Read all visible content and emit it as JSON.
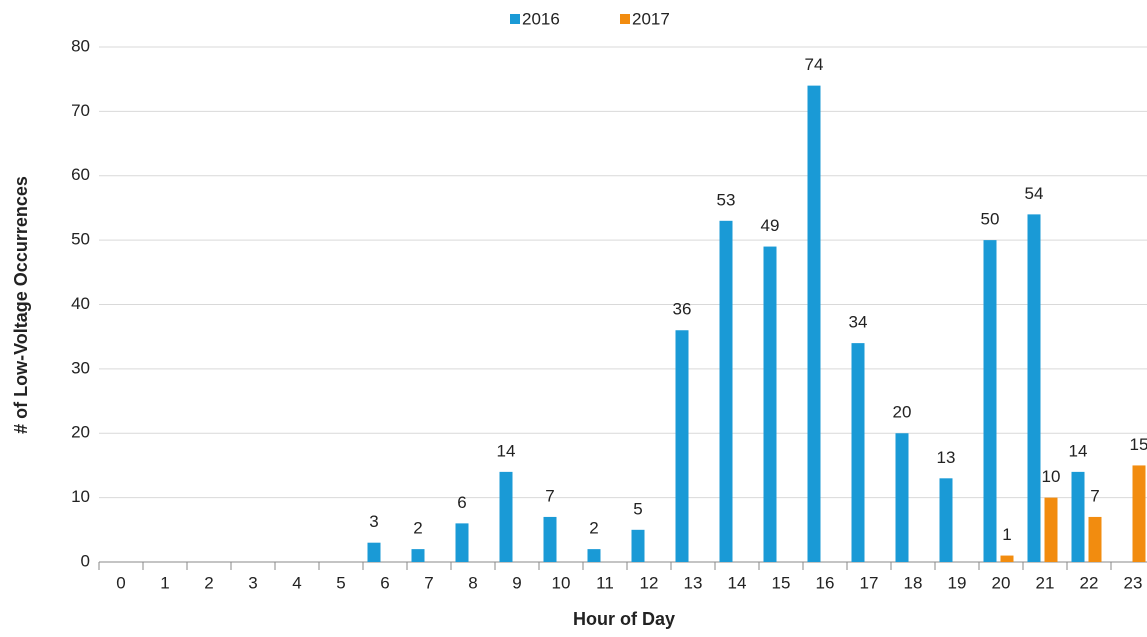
{
  "chart_data": {
    "type": "bar",
    "x_label": "Hour of Day",
    "y_label": "# of Low-Voltage Occurrences",
    "categories": [
      "0",
      "1",
      "2",
      "3",
      "4",
      "5",
      "6",
      "7",
      "8",
      "9",
      "10",
      "11",
      "12",
      "13",
      "14",
      "15",
      "16",
      "17",
      "18",
      "19",
      "20",
      "21",
      "22",
      "23"
    ],
    "series": [
      {
        "name": "2016",
        "color": "#1a9ad6",
        "values": [
          null,
          null,
          null,
          null,
          null,
          null,
          3,
          2,
          6,
          14,
          7,
          2,
          5,
          36,
          53,
          49,
          74,
          34,
          20,
          13,
          50,
          54,
          14,
          null
        ]
      },
      {
        "name": "2017",
        "color": "#f28c0f",
        "values": [
          null,
          null,
          null,
          null,
          null,
          null,
          null,
          null,
          null,
          null,
          null,
          null,
          null,
          null,
          null,
          null,
          null,
          null,
          null,
          null,
          1,
          10,
          7,
          15
        ]
      }
    ],
    "ylim": [
      0,
      80
    ],
    "yticks": [
      0,
      10,
      20,
      30,
      40,
      50,
      60,
      70,
      80
    ],
    "grid": true,
    "legend": "top"
  }
}
